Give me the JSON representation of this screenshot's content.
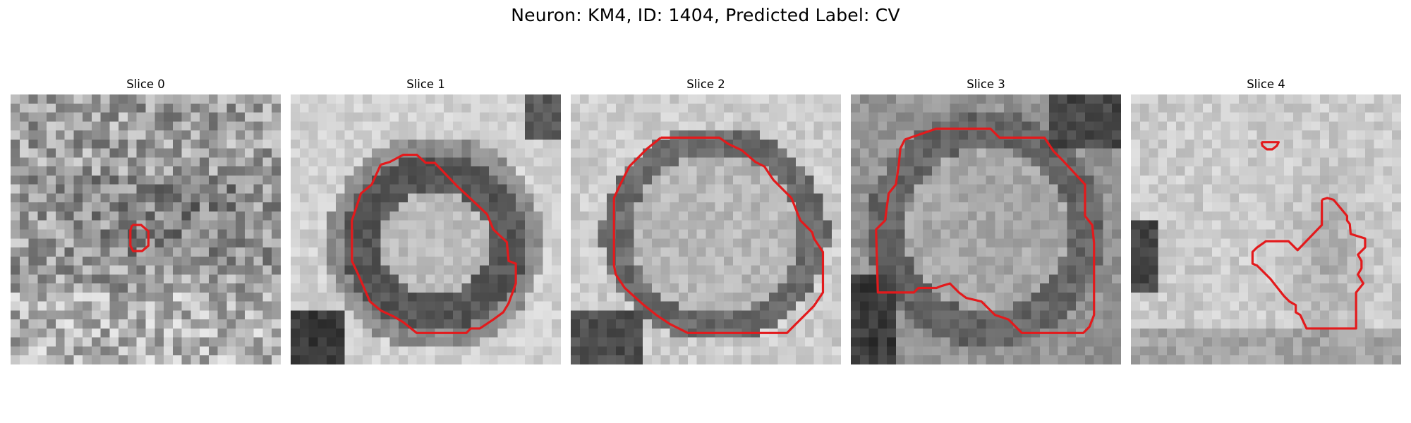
{
  "figure": {
    "title": "Neuron: KM4, ID: 1404, Predicted Label: CV"
  },
  "colors": {
    "contour": "#e31a1c",
    "background": "#ffffff"
  },
  "panels": [
    {
      "title": "Slice 0"
    },
    {
      "title": "Slice 1"
    },
    {
      "title": "Slice 2"
    },
    {
      "title": "Slice 3"
    },
    {
      "title": "Slice 4"
    }
  ]
}
